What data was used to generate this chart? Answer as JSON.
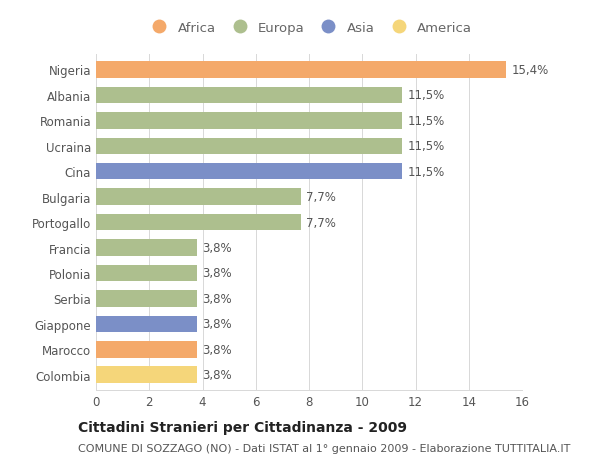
{
  "title": "Cittadini Stranieri per Cittadinanza - 2009",
  "subtitle": "COMUNE DI SOZZAGO (NO) - Dati ISTAT al 1° gennaio 2009 - Elaborazione TUTTITALIA.IT",
  "countries": [
    "Nigeria",
    "Albania",
    "Romania",
    "Ucraina",
    "Cina",
    "Bulgaria",
    "Portogallo",
    "Francia",
    "Polonia",
    "Serbia",
    "Giappone",
    "Marocco",
    "Colombia"
  ],
  "values": [
    15.4,
    11.5,
    11.5,
    11.5,
    11.5,
    7.7,
    7.7,
    3.8,
    3.8,
    3.8,
    3.8,
    3.8,
    3.8
  ],
  "continents": [
    "Africa",
    "Europa",
    "Europa",
    "Europa",
    "Asia",
    "Europa",
    "Europa",
    "Europa",
    "Europa",
    "Europa",
    "Asia",
    "Africa",
    "America"
  ],
  "continent_colors": {
    "Africa": "#F4A96A",
    "Europa": "#ADBF8E",
    "Asia": "#7B8FC7",
    "America": "#F5D67A"
  },
  "legend_order": [
    "Africa",
    "Europa",
    "Asia",
    "America"
  ],
  "xlim": [
    0,
    16
  ],
  "xticks": [
    0,
    2,
    4,
    6,
    8,
    10,
    12,
    14,
    16
  ],
  "background_color": "#ffffff",
  "grid_color": "#d8d8d8",
  "bar_height": 0.65,
  "label_fontsize": 8.5,
  "title_fontsize": 10,
  "subtitle_fontsize": 8,
  "legend_fontsize": 9.5,
  "tick_fontsize": 8.5,
  "label_color": "#555555",
  "tick_color": "#555555"
}
